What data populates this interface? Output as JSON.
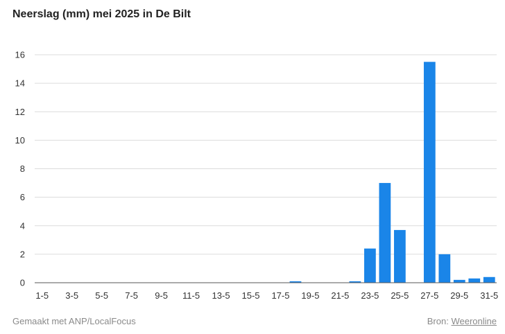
{
  "title": "Neerslag (mm) mei 2025 in De Bilt",
  "footer": {
    "credit": "Gemaakt met ANP/LocalFocus",
    "source_prefix": "Bron:",
    "source_link": "Weeronline"
  },
  "colors": {
    "bar": "#1a85e8",
    "grid": "#dcdcdc",
    "axis": "#555555"
  },
  "chart_data": {
    "type": "bar",
    "title": "Neerslag (mm) mei 2025 in De Bilt",
    "xlabel": "",
    "ylabel": "",
    "ylim": [
      0,
      16
    ],
    "yticks": [
      0,
      2,
      4,
      6,
      8,
      10,
      12,
      14,
      16
    ],
    "grid": true,
    "categories": [
      "1-5",
      "2-5",
      "3-5",
      "4-5",
      "5-5",
      "6-5",
      "7-5",
      "8-5",
      "9-5",
      "10-5",
      "11-5",
      "12-5",
      "13-5",
      "14-5",
      "15-5",
      "16-5",
      "17-5",
      "18-5",
      "19-5",
      "20-5",
      "21-5",
      "22-5",
      "23-5",
      "24-5",
      "25-5",
      "26-5",
      "27-5",
      "28-5",
      "29-5",
      "30-5",
      "31-5"
    ],
    "xtick_labels": [
      "1-5",
      "3-5",
      "5-5",
      "7-5",
      "9-5",
      "11-5",
      "13-5",
      "15-5",
      "17-5",
      "19-5",
      "21-5",
      "23-5",
      "25-5",
      "27-5",
      "29-5",
      "31-5"
    ],
    "values": [
      0,
      0,
      0,
      0,
      0,
      0,
      0,
      0,
      0,
      0,
      0,
      0,
      0,
      0,
      0,
      0,
      0,
      0.1,
      0,
      0,
      0,
      0.1,
      2.4,
      7.0,
      3.7,
      0,
      15.5,
      2.0,
      0.2,
      0.3,
      0.4
    ]
  }
}
